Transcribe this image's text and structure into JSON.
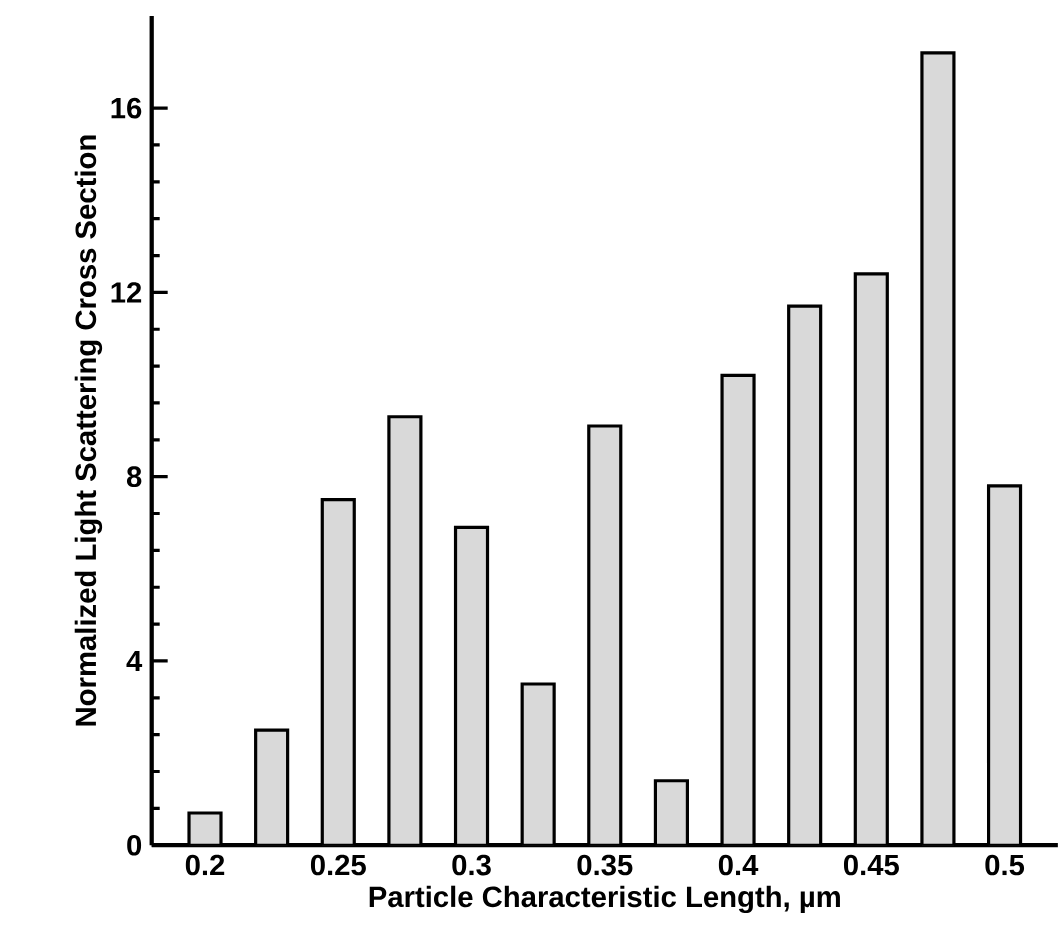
{
  "chart_data": {
    "type": "bar",
    "xlabel": "Particle Characteristic Length, µm",
    "ylabel": "Normalized Light Scattering Cross Section",
    "x": [
      0.2,
      0.225,
      0.25,
      0.275,
      0.3,
      0.325,
      0.35,
      0.375,
      0.4,
      0.425,
      0.45,
      0.475,
      0.5
    ],
    "values": [
      0.7,
      2.5,
      7.5,
      9.3,
      6.9,
      3.5,
      9.1,
      1.4,
      10.2,
      11.7,
      12.4,
      17.2,
      7.8
    ],
    "color": "#d9d9d9",
    "xlim": [
      0.18,
      0.52
    ],
    "ylim": [
      0,
      18
    ],
    "xticks": [
      0.2,
      0.25,
      0.3,
      0.35,
      0.4,
      0.45,
      0.5
    ],
    "yticks": [
      0,
      4,
      8,
      12,
      16
    ]
  }
}
